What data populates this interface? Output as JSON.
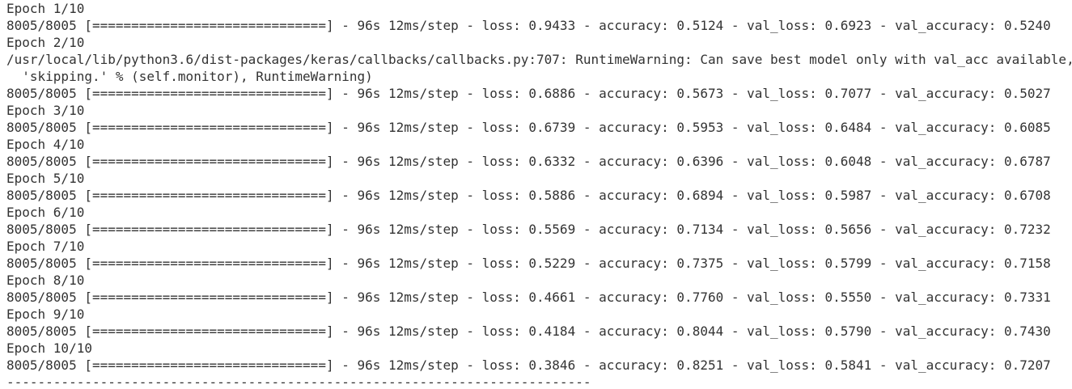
{
  "console": {
    "lines": [
      "Epoch 1/10",
      "8005/8005 [==============================] - 96s 12ms/step - loss: 0.9433 - accuracy: 0.5124 - val_loss: 0.6923 - val_accuracy: 0.5240",
      "Epoch 2/10",
      "/usr/local/lib/python3.6/dist-packages/keras/callbacks/callbacks.py:707: RuntimeWarning: Can save best model only with val_acc available,",
      "  'skipping.' % (self.monitor), RuntimeWarning)",
      "8005/8005 [==============================] - 96s 12ms/step - loss: 0.6886 - accuracy: 0.5673 - val_loss: 0.7077 - val_accuracy: 0.5027",
      "Epoch 3/10",
      "8005/8005 [==============================] - 96s 12ms/step - loss: 0.6739 - accuracy: 0.5953 - val_loss: 0.6484 - val_accuracy: 0.6085",
      "Epoch 4/10",
      "8005/8005 [==============================] - 96s 12ms/step - loss: 0.6332 - accuracy: 0.6396 - val_loss: 0.6048 - val_accuracy: 0.6787",
      "Epoch 5/10",
      "8005/8005 [==============================] - 96s 12ms/step - loss: 0.5886 - accuracy: 0.6894 - val_loss: 0.5987 - val_accuracy: 0.6708",
      "Epoch 6/10",
      "8005/8005 [==============================] - 96s 12ms/step - loss: 0.5569 - accuracy: 0.7134 - val_loss: 0.5656 - val_accuracy: 0.7232",
      "Epoch 7/10",
      "8005/8005 [==============================] - 96s 12ms/step - loss: 0.5229 - accuracy: 0.7375 - val_loss: 0.5799 - val_accuracy: 0.7158",
      "Epoch 8/10",
      "8005/8005 [==============================] - 96s 12ms/step - loss: 0.4661 - accuracy: 0.7760 - val_loss: 0.5550 - val_accuracy: 0.7331",
      "Epoch 9/10",
      "8005/8005 [==============================] - 96s 12ms/step - loss: 0.4184 - accuracy: 0.8044 - val_loss: 0.5790 - val_accuracy: 0.7430",
      "Epoch 10/10",
      "8005/8005 [==============================] - 96s 12ms/step - loss: 0.3846 - accuracy: 0.8251 - val_loss: 0.5841 - val_accuracy: 0.7207",
      "---------------------------------------------------------------------------"
    ]
  }
}
